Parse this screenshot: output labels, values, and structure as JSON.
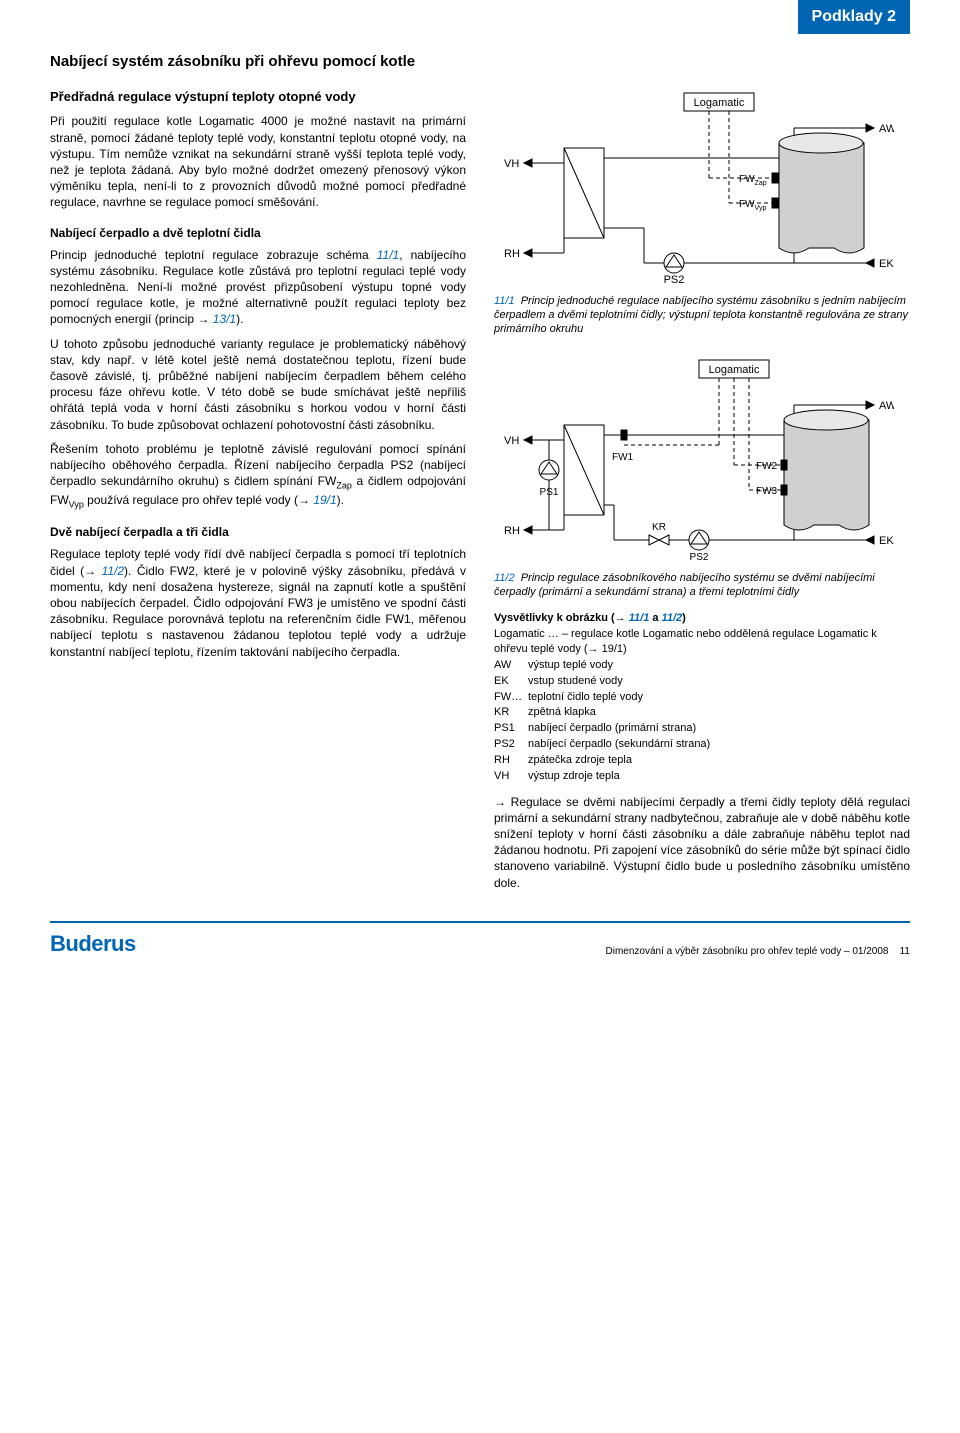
{
  "header": {
    "tab": "Podklady 2"
  },
  "title": "Nabíjecí systém zásobníku při ohřevu pomocí kotle",
  "sections": {
    "s1_title": "Předřadná regulace výstupní teploty otopné vody",
    "s1_p1": "Při použití regulace kotle Logamatic 4000 je možné nastavit na primární straně, pomocí žádané teploty teplé vody, konstantní teplotu otopné vody, na výstupu. Tím nemůže vznikat na sekundární straně vyšší teplota teplé vody, než je teplota žádaná. Aby bylo možné dodržet omezený přenosový výkon výměníku tepla, není-li to z provozních důvodů možné pomocí předřadné regulace, navrhne se regulace pomocí směšování.",
    "s2_title": "Nabíjecí čerpadlo a dvě teplotní čidla",
    "s2_p1a": "Princip jednoduché teplotní regulace zobrazuje schéma ",
    "s2_p1b": ", nabíjecího systému zásobníku. Regulace kotle zůstává pro teplotní regulaci teplé vody nezohledněna. Není-li možné provést přizpůsobení výstupu topné vody pomocí regulace kotle, je možné alternativně použít regulaci teploty bez pomocných energií (princip → ",
    "s2_p1c": ").",
    "s2_p2": "U tohoto způsobu jednoduché varianty regulace je problematický náběhový stav, kdy např. v létě kotel ještě nemá dostatečnou teplotu, řízení bude časově závislé, tj. průběžné nabíjení nabíjecím čerpadlem během celého procesu fáze ohřevu kotle. V této době se bude smíchávat ještě nepříliš ohřátá teplá voda v horní části zásobníku s horkou vodou v horní části zásobníku. To bude způsobovat ochlazení pohotovostní části zásobníku.",
    "s2_p3a": "Řešením tohoto problému je teplotně závislé regulování pomocí spínání nabíjecího oběhového čerpadla. Řízení nabíjecího čerpadla PS2 (nabíjecí čerpadlo sekundárního okruhu) s čidlem spínání FW",
    "s2_p3_zap": "Zap",
    "s2_p3b": " a čidlem odpojování FW",
    "s2_p3_vyp": "Vyp",
    "s2_p3c": " používá regulace pro ohřev teplé vody (→ ",
    "s2_p3d": ").",
    "s3_title": "Dvě nabíjecí čerpadla a tři čidla",
    "s3_p1a": "Regulace teploty teplé vody řídí dvě nabíjecí čerpadla s pomocí tří teplotních čidel (→ ",
    "s3_p1b": "). Čidlo FW2, které je v polovině výšky zásobníku, předává v momentu, kdy není dosažena hystereze, signál na zapnutí kotle a spuštění obou nabíjecích čerpadel. Čidlo odpojování FW3 je umístěno ve spodní části zásobníku. Regulace porovnává teplotu na referenčním čidle FW1, měřenou nabíjecí teplotu s nastavenou žádanou teplotou teplé vody a udržuje konstantní nabíjecí teplotu, řízením taktování nabíjecího čerpadla."
  },
  "refs": {
    "r11_1": "11/1",
    "r13_1": "13/1",
    "r19_1": "19/1",
    "r11_2": "11/2"
  },
  "captions": {
    "c1_num": "11/1",
    "c1_text": "Princip jednoduché regulace nabíjecího systému zásobníku s jedním nabíjecím čerpadlem a dvěmi teplotními čidly; výstupní teplota konstantně regulována ze strany primárního okruhu",
    "c2_num": "11/2",
    "c2_text": "Princip regulace zásobníkového nabíjecího systému se dvěmi nabíjecími čerpadly (primární a sekundární strana) a třemi teplotními čidly"
  },
  "legend": {
    "title_a": "Vysvětlivky k obrázku (→ ",
    "title_b": " a ",
    "title_c": ")",
    "items": [
      {
        "k": "Logamatic …",
        "v": "– regulace kotle Logamatic nebo oddělená regulace Logamatic k ohřevu teplé vody (→ 19/1)"
      },
      {
        "k": "AW",
        "v": "výstup teplé vody"
      },
      {
        "k": "EK",
        "v": "vstup studené vody"
      },
      {
        "k": "FW…",
        "v": "teplotní čidlo teplé vody"
      },
      {
        "k": "KR",
        "v": "zpětná klapka"
      },
      {
        "k": "PS1",
        "v": "nabíjecí čerpadlo (primární strana)"
      },
      {
        "k": "PS2",
        "v": "nabíjecí čerpadlo (sekundární strana)"
      },
      {
        "k": "RH",
        "v": "zpátečka zdroje tepla"
      },
      {
        "k": "VH",
        "v": "výstup zdroje tepla"
      }
    ],
    "note": "→ Regulace se dvěmi nabíjecími čerpadly a třemi čidly teploty dělá regulaci primární a sekundární strany nadbytečnou, zabraňuje ale v době náběhu kotle snížení teploty v horní části zásobníku a dále zabraňuje náběhu teplot nad žádanou hodnotu. Při zapojení více zásobníků do série může být spínací čidlo stanoveno variabilně. Výstupní čidlo bude u posledního zásobníku umístěno dole."
  },
  "diagram1": {
    "labels": {
      "logamatic": "Logamatic",
      "vh": "VH",
      "rh": "RH",
      "aw": "AW",
      "ek": "EK",
      "ps2": "PS2",
      "fwzap": "FW",
      "fwzap_sub": "Zap",
      "fwvyp": "FW",
      "fwvyp_sub": "Vyp"
    },
    "style": {
      "stroke": "#000",
      "fill_tank": "#d0d0d0",
      "dash": "4 3"
    }
  },
  "diagram2": {
    "labels": {
      "logamatic": "Logamatic",
      "vh": "VH",
      "rh": "RH",
      "aw": "AW",
      "ek": "EK",
      "ps1": "PS1",
      "ps2": "PS2",
      "kr": "KR",
      "fw1": "FW1",
      "fw2": "FW2",
      "fw3": "FW3"
    },
    "style": {
      "stroke": "#000",
      "fill_tank": "#d0d0d0",
      "dash": "4 3"
    }
  },
  "footer": {
    "logo": "Buderus",
    "text": "Dimenzování a výběr zásobníku pro ohřev teplé vody – 01/2008",
    "page": "11"
  }
}
